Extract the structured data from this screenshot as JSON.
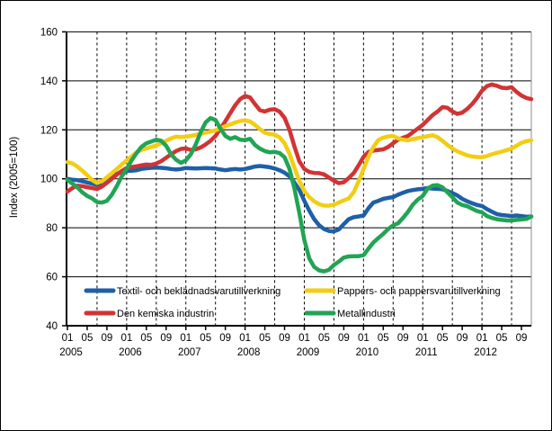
{
  "window": {
    "background": "#ffffff",
    "border_color": "#000000"
  },
  "chart_data": {
    "type": "line",
    "title": "",
    "ylabel": "Index (2005=100)",
    "ylim": [
      40,
      160
    ],
    "ytick_interval": 20,
    "x_start": "2005-01",
    "x_end": "2012-11",
    "x_tick_month_labels": [
      "01",
      "05",
      "09"
    ],
    "years": [
      "2005",
      "2006",
      "2007",
      "2008",
      "2009",
      "2010",
      "2011",
      "2012"
    ],
    "grid": {
      "horizontal_interval": 20,
      "vertical_interval_months": 6,
      "vertical_style": "dashed",
      "on": true
    },
    "legend": {
      "position": "bottom-inside",
      "rows": 2,
      "cols": 2
    },
    "series": [
      {
        "name": "Textil- och beklädnadsvarutillverkning",
        "color": "#1f5fa8",
        "values": [
          100.0,
          99.6,
          99.4,
          99.0,
          98.5,
          98.0,
          97.5,
          98.0,
          99.0,
          100.5,
          102.0,
          102.8,
          103.2,
          103.3,
          103.5,
          104.0,
          104.3,
          104.5,
          104.6,
          104.5,
          104.3,
          104.0,
          103.8,
          104.0,
          104.4,
          104.3,
          104.2,
          104.3,
          104.4,
          104.3,
          104.2,
          103.8,
          103.5,
          103.8,
          104.0,
          103.8,
          104.0,
          104.5,
          105.0,
          105.2,
          105.0,
          104.7,
          104.2,
          103.5,
          102.5,
          101.0,
          98.5,
          95.4,
          91.0,
          87.0,
          83.5,
          81.0,
          79.5,
          78.7,
          78.5,
          79.3,
          81.5,
          83.5,
          84.3,
          84.6,
          85.0,
          88.0,
          90.3,
          91.0,
          91.8,
          92.2,
          92.5,
          93.5,
          94.3,
          95.0,
          95.4,
          95.7,
          95.9,
          96.2,
          96.0,
          95.9,
          95.7,
          95.0,
          94.2,
          93.2,
          91.8,
          90.8,
          90.0,
          89.3,
          88.9,
          87.6,
          86.6,
          85.6,
          85.2,
          85.0,
          84.8,
          85.0,
          84.8,
          84.5,
          84.6
        ]
      },
      {
        "name": "Den kemiska industrin",
        "color": "#d23333",
        "values": [
          94.8,
          96.2,
          97.2,
          97.0,
          96.6,
          96.2,
          95.8,
          96.8,
          98.4,
          100.0,
          101.7,
          103.2,
          104.4,
          104.8,
          105.1,
          105.5,
          105.8,
          105.7,
          106.2,
          107.2,
          108.6,
          110.0,
          111.3,
          112.2,
          112.4,
          111.8,
          112.0,
          112.8,
          114.0,
          115.5,
          117.5,
          120.5,
          123.5,
          126.8,
          130.0,
          132.5,
          133.8,
          133.2,
          130.5,
          128.0,
          127.5,
          128.2,
          128.4,
          127.4,
          124.9,
          120.0,
          113.2,
          107.1,
          104.0,
          102.8,
          102.4,
          102.3,
          101.8,
          100.5,
          99.2,
          98.2,
          98.6,
          100.3,
          102.3,
          105.5,
          109.0,
          111.0,
          111.5,
          111.8,
          112.0,
          113.0,
          114.5,
          116.0,
          116.8,
          117.5,
          119.0,
          120.5,
          122.0,
          124.0,
          126.0,
          127.5,
          129.3,
          129.0,
          127.5,
          126.5,
          127.0,
          128.5,
          130.5,
          133.0,
          136.0,
          137.8,
          138.5,
          138.0,
          137.2,
          137.0,
          137.4,
          135.5,
          134.0,
          133.0,
          132.5
        ]
      },
      {
        "name": "Pappers- och pappersvarutillverkning",
        "color": "#f2cd13",
        "values": [
          106.8,
          106.3,
          105.0,
          103.3,
          101.5,
          99.5,
          98.3,
          99.0,
          100.6,
          102.3,
          104.0,
          105.8,
          107.5,
          109.2,
          110.8,
          111.8,
          112.4,
          113.0,
          113.6,
          114.5,
          115.5,
          116.5,
          117.2,
          117.0,
          117.2,
          117.5,
          117.9,
          118.3,
          118.8,
          119.3,
          119.8,
          120.6,
          121.5,
          122.2,
          123.0,
          123.6,
          123.9,
          123.4,
          122.0,
          120.3,
          118.8,
          118.3,
          118.0,
          116.9,
          114.5,
          110.2,
          104.6,
          99.1,
          95.0,
          92.5,
          90.8,
          89.6,
          89.1,
          89.0,
          89.4,
          90.3,
          91.2,
          92.0,
          94.5,
          99.0,
          104.0,
          109.0,
          113.0,
          115.8,
          116.8,
          117.3,
          117.5,
          116.5,
          116.0,
          115.7,
          116.2,
          116.6,
          117.0,
          117.4,
          117.8,
          117.0,
          115.5,
          113.8,
          112.3,
          111.2,
          110.4,
          109.6,
          109.1,
          108.9,
          108.8,
          109.3,
          110.0,
          110.6,
          111.1,
          111.7,
          112.3,
          113.5,
          114.7,
          115.4,
          115.7
        ]
      },
      {
        "name": "Metallindustri",
        "color": "#21a453",
        "values": [
          99.5,
          98.0,
          96.5,
          94.5,
          93.0,
          92.0,
          90.5,
          90.3,
          91.0,
          93.5,
          97.0,
          101.0,
          104.0,
          107.5,
          110.5,
          113.0,
          114.5,
          115.2,
          116.0,
          115.5,
          113.5,
          110.0,
          107.8,
          106.5,
          107.5,
          110.0,
          114.0,
          119.0,
          123.0,
          124.8,
          124.0,
          120.5,
          117.5,
          116.3,
          117.0,
          116.0,
          115.8,
          116.3,
          113.8,
          112.3,
          111.3,
          110.8,
          111.0,
          110.5,
          108.8,
          104.0,
          96.0,
          86.0,
          75.0,
          67.5,
          64.0,
          62.6,
          62.2,
          62.8,
          64.8,
          66.2,
          67.8,
          68.3,
          68.4,
          68.4,
          68.8,
          71.5,
          74.0,
          75.8,
          77.5,
          79.5,
          81.0,
          81.8,
          84.0,
          86.5,
          89.5,
          91.5,
          93.0,
          96.0,
          97.2,
          97.4,
          96.5,
          94.5,
          92.5,
          90.3,
          89.3,
          88.8,
          87.8,
          86.8,
          86.3,
          84.8,
          84.0,
          83.5,
          83.2,
          83.0,
          83.0,
          83.2,
          83.4,
          83.6,
          84.6
        ]
      }
    ]
  }
}
